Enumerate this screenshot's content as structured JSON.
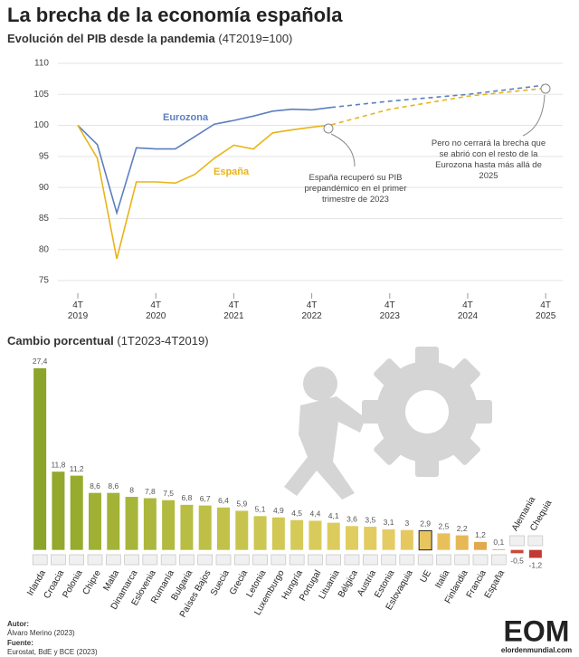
{
  "title": "La brecha de la economía española",
  "chart_data": [
    {
      "type": "line",
      "title": "Evolución del PIB desde la pandemia",
      "subtitle": "(4T2019=100)",
      "x": [
        2019.75,
        2020,
        2020.25,
        2020.5,
        2020.75,
        2021,
        2021.25,
        2021.5,
        2021.75,
        2022,
        2022.25,
        2022.5,
        2022.75,
        2023,
        2023.75,
        2024.75,
        2025.75
      ],
      "series": [
        {
          "name": "Eurozona",
          "color": "#5b7fc0",
          "values": [
            100,
            96.9,
            85.9,
            96.4,
            96.2,
            96.2,
            98.2,
            100.2,
            100.8,
            101.5,
            102.3,
            102.6,
            102.5,
            102.9,
            null,
            null,
            null
          ],
          "projected": [
            null,
            null,
            null,
            null,
            null,
            null,
            null,
            null,
            null,
            null,
            null,
            null,
            null,
            102.9,
            103.9,
            105.0,
            106.5
          ]
        },
        {
          "name": "España",
          "color": "#e8b418",
          "values": [
            100,
            94.7,
            78.5,
            90.9,
            90.9,
            90.7,
            92.1,
            94.7,
            96.8,
            96.2,
            98.8,
            99.3,
            99.7,
            100.1,
            null,
            null,
            null
          ],
          "projected": [
            null,
            null,
            null,
            null,
            null,
            null,
            null,
            null,
            null,
            null,
            null,
            null,
            null,
            100.1,
            102.6,
            104.7,
            106.0
          ]
        }
      ],
      "xlim": [
        2019.5,
        2026
      ],
      "ylim": [
        73.5,
        111.5
      ],
      "yticks": [
        75,
        80,
        85,
        90,
        95,
        100,
        105,
        110
      ],
      "xticks": [
        {
          "value": 2019.75,
          "label": "4T 2019"
        },
        {
          "value": 2020.75,
          "label": "4T 2020"
        },
        {
          "value": 2021.75,
          "label": "4T 2021"
        },
        {
          "value": 2022.75,
          "label": "4T 2022"
        },
        {
          "value": 2023.75,
          "label": "4T 2023"
        },
        {
          "value": 2024.75,
          "label": "4T 2024"
        },
        {
          "value": 2025.75,
          "label": "4T 2025"
        }
      ],
      "grid": true,
      "annotations": [
        "España recuperó su PIB prepandémico en el primer trimestre de 2023",
        "Pero no cerrará la brecha que se abrió con el resto de la Eurozona hasta más allá de 2025"
      ]
    },
    {
      "type": "bar",
      "title": "Cambio porcentual",
      "subtitle": "(1T2023-4T2019)",
      "categories": [
        "Irlanda",
        "Croacia",
        "Polonia",
        "Chipre",
        "Malta",
        "Dinamarca",
        "Eslovenia",
        "Rumanía",
        "Bulgaria",
        "Países Bajos",
        "Suecia",
        "Grecia",
        "Letonia",
        "Luxemburgo",
        "Hungría",
        "Portugal",
        "Lituania",
        "Bélgica",
        "Austria",
        "Estonia",
        "Eslovaquia",
        "UE",
        "Italia",
        "Finlandia",
        "Francia",
        "España",
        "Alemania",
        "Chequia"
      ],
      "values": [
        27.4,
        11.8,
        11.2,
        8.6,
        8.6,
        8,
        7.8,
        7.5,
        6.8,
        6.7,
        6.4,
        5.9,
        5.1,
        4.9,
        4.5,
        4.4,
        4.1,
        3.6,
        3.5,
        3.1,
        3,
        2.9,
        2.5,
        2.2,
        1.2,
        0.1,
        -0.5,
        -1.2
      ],
      "value_labels": [
        "27,4",
        "11,8",
        "11,2",
        "8,6",
        "8,6",
        "8",
        "7,8",
        "7,5",
        "6,8",
        "6,7",
        "6,4",
        "5,9",
        "5,1",
        "4,9",
        "4,5",
        "4,4",
        "4,1",
        "3,6",
        "3,5",
        "3,1",
        "3",
        "2,9",
        "2,5",
        "2,2",
        "1,2",
        "0,1",
        "-0,5",
        "-1,2"
      ],
      "colors": [
        "#8da42a",
        "#93a82c",
        "#97ab2e",
        "#a0b035",
        "#a4b238",
        "#a8b53b",
        "#adb73d",
        "#b2ba40",
        "#b8bd44",
        "#bdbf47",
        "#c2c24a",
        "#c7c44e",
        "#ccc652",
        "#d1c855",
        "#d5ca58",
        "#d8cb5b",
        "#dccc5d",
        "#e0cd60",
        "#e2cc62",
        "#e5cb63",
        "#e6c861",
        "#e8c55f",
        "#e8c05b",
        "#e6b856",
        "#e2a94f",
        "#d99446",
        "#c9493a",
        "#c23a33"
      ],
      "highlight_index": 21,
      "ylim": [
        -2.5,
        28
      ]
    }
  ],
  "footer": {
    "author_label": "Autor:",
    "author": "Álvaro Merino (2023)",
    "source_label": "Fuente:",
    "source": "Eurostat, BdE y BCE (2023)"
  },
  "logo": {
    "mark": "EOM",
    "site": "elordenmundial.com"
  }
}
